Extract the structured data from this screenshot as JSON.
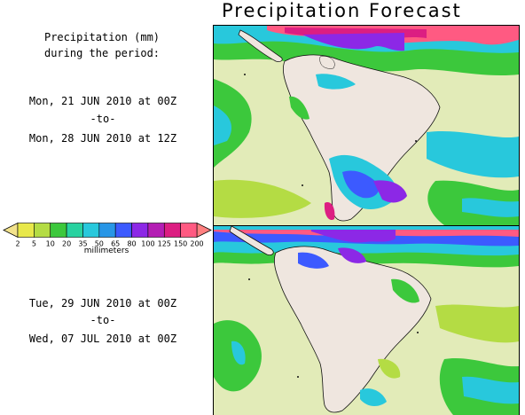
{
  "title": "Precipitation Forecast",
  "heading": {
    "line1": "Precipitation (mm)",
    "line2": "during the period:"
  },
  "period1": {
    "start": "Mon, 21 JUN 2010 at 00Z",
    "sep": "-to-",
    "end": "Mon, 28 JUN 2010 at 12Z"
  },
  "period2": {
    "start": "Tue, 29 JUN 2010 at 00Z",
    "sep": "-to-",
    "end": "Wed, 07 JUL 2010 at 00Z"
  },
  "legend": {
    "units": "millimeters",
    "ticks": [
      "2",
      "5",
      "10",
      "20",
      "35",
      "50",
      "65",
      "80",
      "100",
      "125",
      "150",
      "200"
    ],
    "colors": [
      "#e8e84a",
      "#b4dc44",
      "#3cc83c",
      "#28d2a0",
      "#28c8dc",
      "#2896e6",
      "#3c5aff",
      "#8c28e6",
      "#b41eb4",
      "#dc1e82",
      "#ff5a82"
    ],
    "low_color": "#f2e28c",
    "high_color": "#ff8080"
  },
  "map_colors": {
    "land": "#efe6df",
    "ocean_base": "#e2ebb8",
    "outline": "#111111"
  }
}
